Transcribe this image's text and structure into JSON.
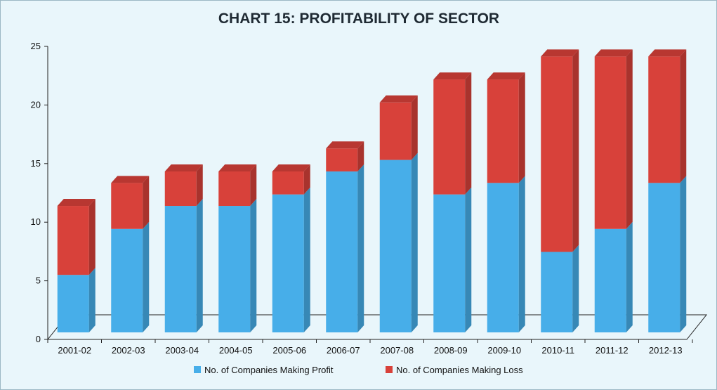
{
  "chart_data": {
    "type": "bar",
    "stacked": true,
    "title": "CHART 15: PROFITABILITY OF SECTOR",
    "xlabel": "",
    "ylabel": "",
    "ylim": [
      0,
      25
    ],
    "yticks": [
      0,
      5,
      10,
      15,
      20,
      25
    ],
    "categories": [
      "2001-02",
      "2002-03",
      "2003-04",
      "2004-05",
      "2005-06",
      "2006-07",
      "2007-08",
      "2008-09",
      "2009-10",
      "2010-11",
      "2011-12",
      "2012-13"
    ],
    "series": [
      {
        "name": "No. of Companies Making Profit",
        "color": "#47aee9",
        "values": [
          5,
          9,
          11,
          11,
          12,
          14,
          15,
          12,
          13,
          7,
          9,
          13
        ]
      },
      {
        "name": "No. of Companies Making Loss",
        "color": "#d8413a",
        "values": [
          6,
          4,
          3,
          3,
          2,
          2,
          5,
          10,
          9,
          17,
          15,
          11
        ]
      }
    ],
    "legend_position": "bottom",
    "grid": false
  }
}
